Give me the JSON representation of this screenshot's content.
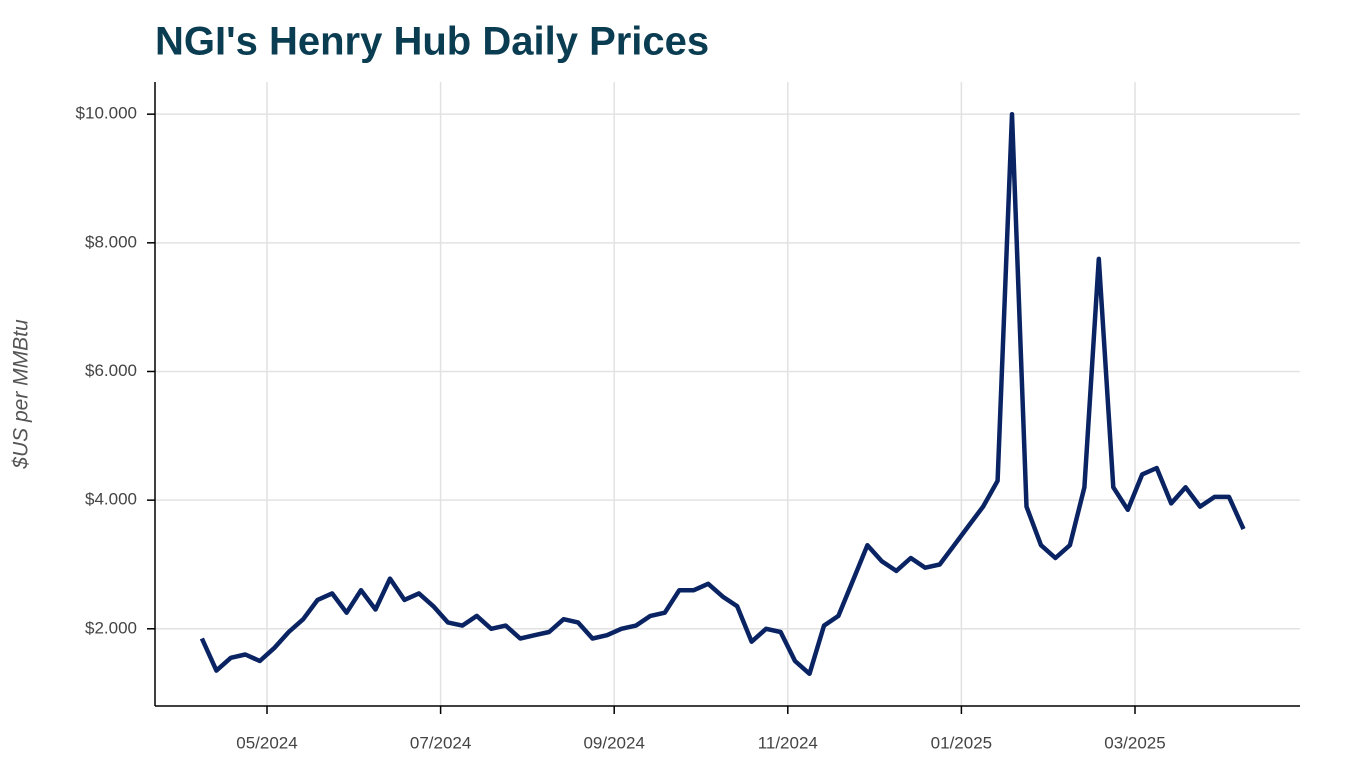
{
  "chart_data": {
    "type": "line",
    "title": "NGI's Henry Hub Daily Prices",
    "y_label": "$US per MMBtu",
    "x": [
      "04/2024",
      "04/2024",
      "04/2024",
      "04/2024",
      "04/2024",
      "05/2024",
      "05/2024",
      "05/2024",
      "05/2024",
      "05/2024",
      "05/2024",
      "06/2024",
      "06/2024",
      "06/2024",
      "06/2024",
      "06/2024",
      "06/2024",
      "07/2024",
      "07/2024",
      "07/2024",
      "07/2024",
      "07/2024",
      "07/2024",
      "08/2024",
      "08/2024",
      "08/2024",
      "08/2024",
      "08/2024",
      "08/2024",
      "09/2024",
      "09/2024",
      "09/2024",
      "09/2024",
      "09/2024",
      "09/2024",
      "10/2024",
      "10/2024",
      "10/2024",
      "10/2024",
      "10/2024",
      "10/2024",
      "11/2024",
      "11/2024",
      "11/2024",
      "11/2024",
      "11/2024",
      "11/2024",
      "12/2024",
      "12/2024",
      "12/2024",
      "12/2024",
      "12/2024",
      "12/2024",
      "01/2025",
      "01/2025",
      "01/2025",
      "01/2025",
      "01/2025",
      "01/2025",
      "02/2025",
      "02/2025",
      "02/2025",
      "02/2025",
      "02/2025",
      "02/2025",
      "03/2025",
      "03/2025",
      "03/2025",
      "03/2025",
      "03/2025",
      "03/2025",
      "04/2025",
      "04/2025"
    ],
    "series": [
      {
        "name": "Henry Hub",
        "color": "#0a2463",
        "values": [
          1.85,
          1.35,
          1.55,
          1.6,
          1.5,
          1.7,
          1.95,
          2.15,
          2.45,
          2.55,
          2.25,
          2.6,
          2.3,
          2.78,
          2.45,
          2.55,
          2.35,
          2.1,
          2.05,
          2.2,
          2.0,
          2.05,
          1.85,
          1.9,
          1.95,
          2.15,
          2.1,
          1.85,
          1.9,
          2.0,
          2.05,
          2.2,
          2.25,
          2.6,
          2.6,
          2.7,
          2.5,
          2.35,
          1.8,
          2.0,
          1.95,
          1.5,
          1.3,
          2.05,
          2.2,
          2.75,
          3.3,
          3.05,
          2.9,
          3.1,
          2.95,
          3.0,
          3.3,
          3.6,
          3.9,
          4.3,
          10.0,
          3.9,
          3.3,
          3.1,
          3.3,
          4.2,
          7.75,
          4.2,
          3.85,
          4.4,
          4.5,
          3.95,
          4.2,
          3.9,
          4.05,
          4.05,
          3.55
        ]
      }
    ],
    "ylim": [
      0.8,
      10.5
    ],
    "yticks": [
      {
        "value": 2,
        "label": "$2.000"
      },
      {
        "value": 4,
        "label": "$4.000"
      },
      {
        "value": 6,
        "label": "$6.000"
      },
      {
        "value": 8,
        "label": "$8.000"
      },
      {
        "value": 10,
        "label": "$10.000"
      }
    ],
    "xticks": [
      "05/2024",
      "07/2024",
      "09/2024",
      "11/2024",
      "01/2025",
      "03/2025"
    ],
    "grid": true
  }
}
